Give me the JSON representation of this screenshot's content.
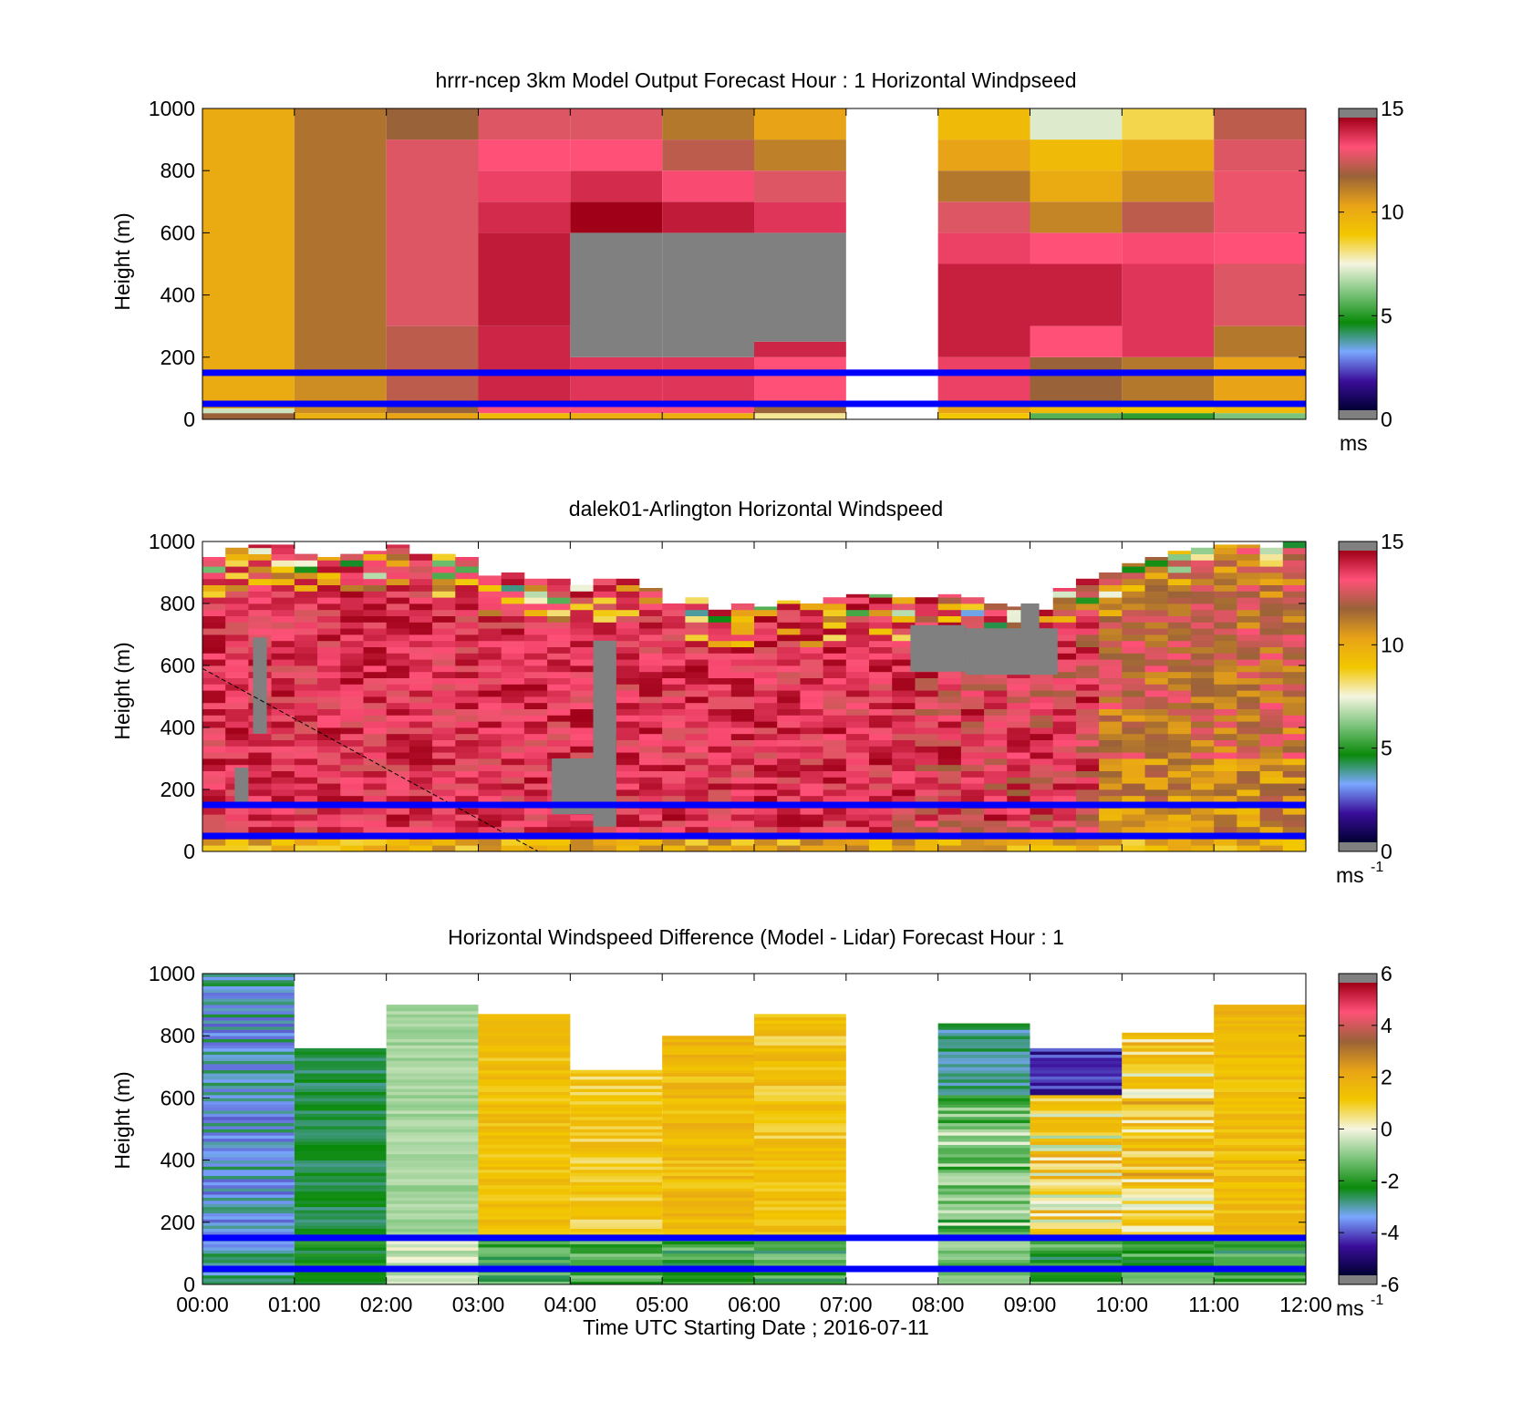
{
  "chart_data": [
    {
      "type": "heatmap",
      "title": "hrrr-ncep 3km Model Output   Forecast Hour : 1 Horizontal Windpseed",
      "ylabel": "Height (m)",
      "xlabel": "",
      "ylim": [
        0,
        1000
      ],
      "y_ticks": [
        "0",
        "200",
        "400",
        "600",
        "800",
        "1000"
      ],
      "colorbar": {
        "label": "ms",
        "label_sup": "",
        "min": 0,
        "max": 15,
        "ticks": [
          "0",
          "5",
          "10",
          "15"
        ],
        "colormap": "windspeed"
      },
      "hour_columns": [
        {
          "start": 0,
          "end": 1,
          "bands": [
            [
              0,
              20,
              12
            ],
            [
              20,
              35,
              7
            ],
            [
              35,
              1000,
              10.2
            ]
          ]
        },
        {
          "start": 1,
          "end": 2,
          "bands": [
            [
              0,
              20,
              10
            ],
            [
              20,
              160,
              11
            ],
            [
              160,
              1000,
              11.6
            ]
          ]
        },
        {
          "start": 2,
          "end": 3,
          "bands": [
            [
              0,
              20,
              10.5
            ],
            [
              20,
              60,
              12
            ],
            [
              60,
              300,
              12.5
            ],
            [
              300,
              900,
              13
            ],
            [
              900,
              1000,
              12
            ]
          ]
        },
        {
          "start": 3,
          "end": 4,
          "bands": [
            [
              0,
              20,
              9.5
            ],
            [
              20,
              60,
              13.5
            ],
            [
              60,
              300,
              14.3
            ],
            [
              300,
              600,
              14.5
            ],
            [
              600,
              700,
              14.2
            ],
            [
              700,
              800,
              13.8
            ],
            [
              800,
              900,
              13.5
            ],
            [
              900,
              1000,
              13
            ]
          ]
        },
        {
          "start": 4,
          "end": 5,
          "bands": [
            [
              0,
              20,
              10
            ],
            [
              20,
              60,
              13.5
            ],
            [
              60,
              200,
              14
            ],
            [
              200,
              600,
              null
            ],
            [
              600,
              700,
              15
            ],
            [
              700,
              800,
              14.2
            ],
            [
              800,
              900,
              13.5
            ],
            [
              900,
              1000,
              13
            ]
          ]
        },
        {
          "start": 5,
          "end": 6,
          "bands": [
            [
              0,
              20,
              10
            ],
            [
              20,
              60,
              13.5
            ],
            [
              60,
              200,
              14
            ],
            [
              200,
              600,
              null
            ],
            [
              600,
              700,
              14.5
            ],
            [
              700,
              800,
              13.6
            ],
            [
              800,
              900,
              12.5
            ],
            [
              900,
              1000,
              11.5
            ]
          ]
        },
        {
          "start": 6,
          "end": 7,
          "bands": [
            [
              0,
              20,
              8
            ],
            [
              20,
              60,
              12
            ],
            [
              60,
              200,
              13.5
            ],
            [
              200,
              250,
              14.3
            ],
            [
              250,
              600,
              null
            ],
            [
              600,
              700,
              14
            ],
            [
              700,
              800,
              13
            ],
            [
              800,
              900,
              11.3
            ],
            [
              900,
              1000,
              10.5
            ]
          ]
        },
        {
          "start": 7,
          "end": 8,
          "bands": []
        },
        {
          "start": 8,
          "end": 9,
          "bands": [
            [
              0,
              20,
              9
            ],
            [
              20,
              60,
              10.5
            ],
            [
              60,
              200,
              13.8
            ],
            [
              200,
              500,
              14.4
            ],
            [
              500,
              600,
              13.8
            ],
            [
              600,
              700,
              13
            ],
            [
              700,
              800,
              11.5
            ],
            [
              800,
              900,
              10.5
            ],
            [
              900,
              1000,
              9.5
            ]
          ]
        },
        {
          "start": 9,
          "end": 10,
          "bands": [
            [
              0,
              20,
              5.5
            ],
            [
              20,
              60,
              9.5
            ],
            [
              60,
              200,
              12
            ],
            [
              200,
              300,
              13.5
            ],
            [
              300,
              500,
              14.4
            ],
            [
              500,
              600,
              13.5
            ],
            [
              600,
              700,
              11.2
            ],
            [
              700,
              800,
              10.2
            ],
            [
              800,
              900,
              9.5
            ],
            [
              900,
              1000,
              7.2
            ]
          ]
        },
        {
          "start": 10,
          "end": 11,
          "bands": [
            [
              0,
              20,
              5
            ],
            [
              20,
              60,
              9
            ],
            [
              60,
              200,
              11.5
            ],
            [
              200,
              500,
              14
            ],
            [
              500,
              600,
              13.6
            ],
            [
              600,
              700,
              12.5
            ],
            [
              700,
              800,
              11
            ],
            [
              800,
              900,
              10.2
            ],
            [
              900,
              1000,
              8.5
            ]
          ]
        },
        {
          "start": 11,
          "end": 12,
          "bands": [
            [
              0,
              20,
              6
            ],
            [
              20,
              60,
              9.5
            ],
            [
              60,
              200,
              10.5
            ],
            [
              200,
              300,
              11.5
            ],
            [
              300,
              500,
              13
            ],
            [
              500,
              600,
              13.5
            ],
            [
              600,
              800,
              13.2
            ],
            [
              800,
              900,
              13
            ],
            [
              900,
              1000,
              12.5
            ]
          ]
        }
      ]
    },
    {
      "type": "heatmap",
      "title": "dalek01-Arlington  Horizontal Windspeed",
      "ylabel": "Height (m)",
      "xlabel": "",
      "ylim": [
        0,
        1000
      ],
      "y_ticks": [
        "0",
        "200",
        "400",
        "600",
        "800",
        "1000"
      ],
      "colorbar": {
        "label": "ms",
        "label_sup": "-1",
        "min": 0,
        "max": 15,
        "ticks": [
          "0",
          "5",
          "10",
          "15"
        ],
        "colormap": "windspeed"
      },
      "profile_step_hours": 0.25,
      "profile_start_hours": 0.0,
      "profile_end_hours": 11.75,
      "profile_top_m": [
        950,
        980,
        990,
        990,
        960,
        950,
        960,
        970,
        990,
        960,
        960,
        950,
        890,
        900,
        880,
        880,
        860,
        880,
        880,
        850,
        800,
        820,
        780,
        800,
        790,
        810,
        800,
        820,
        830,
        830,
        820,
        820,
        830,
        820,
        800,
        790,
        780,
        850,
        880,
        900,
        930,
        950,
        970,
        980,
        990,
        990,
        980,
        1000
      ],
      "gray_blocks": [
        [
          0.35,
          0.5,
          140,
          270
        ],
        [
          0.55,
          0.7,
          380,
          690
        ],
        [
          3.8,
          4.25,
          120,
          300
        ],
        [
          4.25,
          4.5,
          80,
          680
        ],
        [
          7.7,
          8.3,
          580,
          730
        ],
        [
          8.3,
          9.3,
          570,
          720
        ],
        [
          8.9,
          9.1,
          700,
          800
        ]
      ],
      "dashed_line": [
        [
          0,
          590
        ],
        [
          3.65,
          0
        ]
      ],
      "dashed_line_data_units": "hour, m"
    },
    {
      "type": "heatmap",
      "title": "Horizontal Windspeed Difference (Model - Lidar) Forecast Hour : 1",
      "xlabel": "Time UTC  Starting Date ; 2016-07-11",
      "ylabel": "Height (m)",
      "ylim": [
        0,
        1000
      ],
      "y_ticks": [
        "0",
        "200",
        "400",
        "600",
        "800",
        "1000"
      ],
      "x_ticks": [
        "00:00",
        "01:00",
        "02:00",
        "03:00",
        "04:00",
        "05:00",
        "06:00",
        "07:00",
        "08:00",
        "09:00",
        "10:00",
        "11:00",
        "12:00"
      ],
      "colorbar": {
        "label": "ms",
        "label_sup": "-1",
        "min": -6,
        "max": 6,
        "ticks": [
          "-6",
          "-4",
          "-2",
          "0",
          "2",
          "4",
          "6"
        ],
        "colormap": "difference"
      },
      "hour_columns": [
        {
          "start": 0,
          "end": 1,
          "top": 1000,
          "base": -3.4,
          "spread": 0.8
        },
        {
          "start": 1,
          "end": 2,
          "top": 760,
          "base": -2.7,
          "spread": 0.4
        },
        {
          "start": 2,
          "end": 3,
          "top": 900,
          "base": -0.8,
          "spread": 0.3
        },
        {
          "start": 3,
          "end": 4,
          "top": 870,
          "base": 1.4,
          "spread": 0.5
        },
        {
          "start": 4,
          "end": 5,
          "top": 690,
          "base": 1.1,
          "spread": 0.7
        },
        {
          "start": 5,
          "end": 6,
          "top": 800,
          "base": 1.6,
          "spread": 0.6
        },
        {
          "start": 6,
          "end": 7,
          "top": 870,
          "base": 1.3,
          "spread": 0.7
        },
        {
          "start": 7,
          "end": 8,
          "top": null,
          "base": null,
          "spread": 0
        },
        {
          "start": 8,
          "end": 9,
          "top": 840,
          "base": -1.4,
          "spread": 1.3
        },
        {
          "start": 9,
          "end": 10,
          "top": 760,
          "base": 0.8,
          "spread": 1.6
        },
        {
          "start": 10,
          "end": 11,
          "top": 810,
          "base": 1.2,
          "spread": 1.5
        },
        {
          "start": 11,
          "end": 12,
          "top": 900,
          "base": 1.6,
          "spread": 0.6
        }
      ]
    }
  ],
  "reference_lines_m": [
    50,
    150
  ],
  "reference_line_color": "#0000ff"
}
